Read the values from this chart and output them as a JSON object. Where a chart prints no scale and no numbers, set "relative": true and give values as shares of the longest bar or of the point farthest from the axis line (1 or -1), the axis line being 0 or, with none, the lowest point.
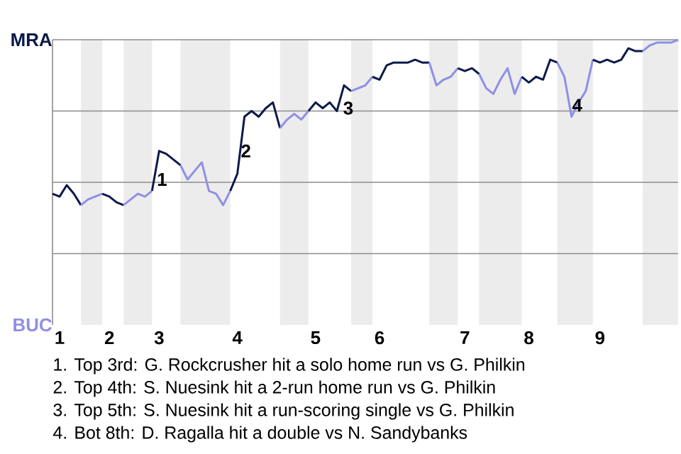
{
  "chart_data": {
    "type": "line",
    "relative": true,
    "grid": false,
    "categories": [
      null,
      "1",
      null,
      null,
      null,
      null,
      null,
      null,
      "2",
      null,
      null,
      null,
      null,
      null,
      null,
      "3",
      null,
      null,
      null,
      null,
      null,
      null,
      null,
      null,
      null,
      null,
      "4",
      null,
      null,
      null,
      null,
      null,
      null,
      null,
      null,
      null,
      null,
      "5",
      null,
      null,
      null,
      null,
      null,
      null,
      null,
      null,
      "6",
      null,
      null,
      null,
      null,
      null,
      null,
      null,
      null,
      null,
      null,
      null,
      "7",
      null,
      null,
      null,
      null,
      null,
      null,
      null,
      null,
      "8",
      null,
      null,
      null,
      null,
      null,
      null,
      null,
      null,
      null,
      "9",
      null,
      null,
      null,
      null,
      null,
      null,
      null,
      null,
      null,
      null,
      null
    ],
    "series": [
      {
        "color": "#0b1a4a",
        "values": [
          0.46,
          0.45,
          0.49,
          0.46,
          0.42,
          null,
          null,
          null,
          null,
          null,
          null,
          null,
          null,
          null,
          null,
          null,
          null,
          null,
          null,
          null,
          null,
          null,
          null,
          null,
          null,
          null,
          null,
          null,
          null,
          null,
          null,
          null,
          null,
          null,
          null,
          null,
          null,
          null,
          null,
          null,
          null,
          null,
          null,
          null,
          null,
          null,
          null,
          null,
          null,
          null,
          null,
          null,
          null,
          null,
          null,
          null,
          null,
          null,
          null,
          null,
          null,
          null,
          null,
          null,
          null,
          null,
          null,
          null,
          null,
          null,
          null,
          null,
          null,
          null,
          null,
          null,
          null,
          null,
          null,
          null,
          null,
          null,
          null,
          null,
          null,
          null,
          null,
          null,
          null
        ]
      },
      {
        "color": "#8f8fe6",
        "values": [
          null,
          null,
          null,
          null,
          0.42,
          0.44,
          0.45,
          0.46,
          null,
          null,
          null,
          null,
          null,
          null,
          null,
          null,
          null,
          null,
          null,
          null,
          null,
          null,
          null,
          null,
          null,
          null,
          null,
          null,
          null,
          null,
          null,
          null,
          null,
          null,
          null,
          null,
          null,
          null,
          null,
          null,
          null,
          null,
          null,
          null,
          null,
          null,
          null,
          null,
          null,
          null,
          null,
          null,
          null,
          null,
          null,
          null,
          null,
          null,
          null,
          null,
          null,
          null,
          null,
          null,
          null,
          null,
          null,
          null,
          null,
          null,
          null,
          null,
          null,
          null,
          null,
          null,
          null,
          null,
          null,
          null,
          null,
          null,
          null,
          null,
          null,
          null,
          null,
          null,
          null
        ]
      },
      {
        "color": "#0b1a4a",
        "values": [
          null,
          null,
          null,
          null,
          null,
          null,
          null,
          0.46,
          0.45,
          0.43,
          0.42,
          null,
          null,
          null,
          null,
          null,
          null,
          null,
          null,
          null,
          null,
          null,
          null,
          null,
          null,
          null,
          null,
          null,
          null,
          null,
          null,
          null,
          null,
          null,
          null,
          null,
          null,
          null,
          null,
          null,
          null,
          null,
          null,
          null,
          null,
          null,
          null,
          null,
          null,
          null,
          null,
          null,
          null,
          null,
          null,
          null,
          null,
          null,
          null,
          null,
          null,
          null,
          null,
          null,
          null,
          null,
          null,
          null,
          null,
          null,
          null,
          null,
          null,
          null,
          null,
          null,
          null,
          null,
          null,
          null,
          null,
          null,
          null,
          null,
          null,
          null,
          null,
          null,
          null
        ]
      },
      {
        "color": "#8f8fe6",
        "values": [
          null,
          null,
          null,
          null,
          null,
          null,
          null,
          null,
          null,
          null,
          0.42,
          0.44,
          0.46,
          0.45,
          0.47,
          null,
          null,
          null,
          null,
          null,
          null,
          null,
          null,
          null,
          null,
          null,
          null,
          null,
          null,
          null,
          null,
          null,
          null,
          null,
          null,
          null,
          null,
          null,
          null,
          null,
          null,
          null,
          null,
          null,
          null,
          null,
          null,
          null,
          null,
          null,
          null,
          null,
          null,
          null,
          null,
          null,
          null,
          null,
          null,
          null,
          null,
          null,
          null,
          null,
          null,
          null,
          null,
          null,
          null,
          null,
          null,
          null,
          null,
          null,
          null,
          null,
          null,
          null,
          null,
          null,
          null,
          null,
          null,
          null,
          null,
          null,
          null,
          null,
          null
        ]
      },
      {
        "color": "#0b1a4a",
        "values": [
          null,
          null,
          null,
          null,
          null,
          null,
          null,
          null,
          null,
          null,
          null,
          null,
          null,
          null,
          0.47,
          0.61,
          0.6,
          0.58,
          0.56,
          null,
          null,
          null,
          null,
          null,
          null,
          null,
          null,
          null,
          null,
          null,
          null,
          null,
          null,
          null,
          null,
          null,
          null,
          null,
          null,
          null,
          null,
          null,
          null,
          null,
          null,
          null,
          null,
          null,
          null,
          null,
          null,
          null,
          null,
          null,
          null,
          null,
          null,
          null,
          null,
          null,
          null,
          null,
          null,
          null,
          null,
          null,
          null,
          null,
          null,
          null,
          null,
          null,
          null,
          null,
          null,
          null,
          null,
          null,
          null,
          null,
          null,
          null,
          null,
          null,
          null,
          null,
          null,
          null,
          null
        ]
      },
      {
        "color": "#8f8fe6",
        "values": [
          null,
          null,
          null,
          null,
          null,
          null,
          null,
          null,
          null,
          null,
          null,
          null,
          null,
          null,
          null,
          null,
          null,
          null,
          0.56,
          0.51,
          0.54,
          0.57,
          0.47,
          0.46,
          0.42,
          0.47,
          null,
          null,
          null,
          null,
          null,
          null,
          null,
          null,
          null,
          null,
          null,
          null,
          null,
          null,
          null,
          null,
          null,
          null,
          null,
          null,
          null,
          null,
          null,
          null,
          null,
          null,
          null,
          null,
          null,
          null,
          null,
          null,
          null,
          null,
          null,
          null,
          null,
          null,
          null,
          null,
          null,
          null,
          null,
          null,
          null,
          null,
          null,
          null,
          null,
          null,
          null,
          null,
          null,
          null,
          null,
          null,
          null,
          null,
          null,
          null,
          null,
          null,
          null
        ]
      },
      {
        "color": "#0b1a4a",
        "values": [
          null,
          null,
          null,
          null,
          null,
          null,
          null,
          null,
          null,
          null,
          null,
          null,
          null,
          null,
          null,
          null,
          null,
          null,
          null,
          null,
          null,
          null,
          null,
          null,
          null,
          0.47,
          0.53,
          0.73,
          0.75,
          0.73,
          0.76,
          0.78,
          0.69,
          null,
          null,
          null,
          null,
          null,
          null,
          null,
          null,
          null,
          null,
          null,
          null,
          null,
          null,
          null,
          null,
          null,
          null,
          null,
          null,
          null,
          null,
          null,
          null,
          null,
          null,
          null,
          null,
          null,
          null,
          null,
          null,
          null,
          null,
          null,
          null,
          null,
          null,
          null,
          null,
          null,
          null,
          null,
          null,
          null,
          null,
          null,
          null,
          null,
          null,
          null,
          null,
          null,
          null,
          null,
          null
        ]
      },
      {
        "color": "#8f8fe6",
        "values": [
          null,
          null,
          null,
          null,
          null,
          null,
          null,
          null,
          null,
          null,
          null,
          null,
          null,
          null,
          null,
          null,
          null,
          null,
          null,
          null,
          null,
          null,
          null,
          null,
          null,
          null,
          null,
          null,
          null,
          null,
          null,
          null,
          0.69,
          0.72,
          0.74,
          0.72,
          0.75,
          null,
          null,
          null,
          null,
          null,
          null,
          null,
          null,
          null,
          null,
          null,
          null,
          null,
          null,
          null,
          null,
          null,
          null,
          null,
          null,
          null,
          null,
          null,
          null,
          null,
          null,
          null,
          null,
          null,
          null,
          null,
          null,
          null,
          null,
          null,
          null,
          null,
          null,
          null,
          null,
          null,
          null,
          null,
          null,
          null,
          null,
          null,
          null,
          null,
          null,
          null,
          null
        ]
      },
      {
        "color": "#0b1a4a",
        "values": [
          null,
          null,
          null,
          null,
          null,
          null,
          null,
          null,
          null,
          null,
          null,
          null,
          null,
          null,
          null,
          null,
          null,
          null,
          null,
          null,
          null,
          null,
          null,
          null,
          null,
          null,
          null,
          null,
          null,
          null,
          null,
          null,
          null,
          null,
          null,
          null,
          0.75,
          0.78,
          0.76,
          0.78,
          0.75,
          0.84,
          0.82,
          null,
          null,
          null,
          null,
          null,
          null,
          null,
          null,
          null,
          null,
          null,
          null,
          null,
          null,
          null,
          null,
          null,
          null,
          null,
          null,
          null,
          null,
          null,
          null,
          null,
          null,
          null,
          null,
          null,
          null,
          null,
          null,
          null,
          null,
          null,
          null,
          null,
          null,
          null,
          null,
          null,
          null,
          null,
          null,
          null,
          null
        ]
      },
      {
        "color": "#8f8fe6",
        "values": [
          null,
          null,
          null,
          null,
          null,
          null,
          null,
          null,
          null,
          null,
          null,
          null,
          null,
          null,
          null,
          null,
          null,
          null,
          null,
          null,
          null,
          null,
          null,
          null,
          null,
          null,
          null,
          null,
          null,
          null,
          null,
          null,
          null,
          null,
          null,
          null,
          null,
          null,
          null,
          null,
          null,
          null,
          0.82,
          0.83,
          0.84,
          0.87,
          null,
          null,
          null,
          null,
          null,
          null,
          null,
          null,
          null,
          null,
          null,
          null,
          null,
          null,
          null,
          null,
          null,
          null,
          null,
          null,
          null,
          null,
          null,
          null,
          null,
          null,
          null,
          null,
          null,
          null,
          null,
          null,
          null,
          null,
          null,
          null,
          null,
          null,
          null,
          null,
          null,
          null,
          null
        ]
      },
      {
        "color": "#0b1a4a",
        "values": [
          null,
          null,
          null,
          null,
          null,
          null,
          null,
          null,
          null,
          null,
          null,
          null,
          null,
          null,
          null,
          null,
          null,
          null,
          null,
          null,
          null,
          null,
          null,
          null,
          null,
          null,
          null,
          null,
          null,
          null,
          null,
          null,
          null,
          null,
          null,
          null,
          null,
          null,
          null,
          null,
          null,
          null,
          null,
          null,
          null,
          0.87,
          0.86,
          0.91,
          0.92,
          0.92,
          0.92,
          0.93,
          0.92,
          0.92,
          null,
          null,
          null,
          null,
          null,
          null,
          null,
          null,
          null,
          null,
          null,
          null,
          null,
          null,
          null,
          null,
          null,
          null,
          null,
          null,
          null,
          null,
          null,
          null,
          null,
          null,
          null,
          null,
          null,
          null,
          null,
          null,
          null,
          null,
          null
        ]
      },
      {
        "color": "#8f8fe6",
        "values": [
          null,
          null,
          null,
          null,
          null,
          null,
          null,
          null,
          null,
          null,
          null,
          null,
          null,
          null,
          null,
          null,
          null,
          null,
          null,
          null,
          null,
          null,
          null,
          null,
          null,
          null,
          null,
          null,
          null,
          null,
          null,
          null,
          null,
          null,
          null,
          null,
          null,
          null,
          null,
          null,
          null,
          null,
          null,
          null,
          null,
          null,
          null,
          null,
          null,
          null,
          null,
          null,
          null,
          0.92,
          0.84,
          0.86,
          0.87,
          0.9,
          null,
          null,
          null,
          null,
          null,
          null,
          null,
          null,
          null,
          null,
          null,
          null,
          null,
          null,
          null,
          null,
          null,
          null,
          null,
          null,
          null,
          null,
          null,
          null,
          null,
          null,
          null,
          null,
          null,
          null,
          null
        ]
      },
      {
        "color": "#0b1a4a",
        "values": [
          null,
          null,
          null,
          null,
          null,
          null,
          null,
          null,
          null,
          null,
          null,
          null,
          null,
          null,
          null,
          null,
          null,
          null,
          null,
          null,
          null,
          null,
          null,
          null,
          null,
          null,
          null,
          null,
          null,
          null,
          null,
          null,
          null,
          null,
          null,
          null,
          null,
          null,
          null,
          null,
          null,
          null,
          null,
          null,
          null,
          null,
          null,
          null,
          null,
          null,
          null,
          null,
          null,
          null,
          null,
          null,
          null,
          0.9,
          0.89,
          0.9,
          0.88,
          null,
          null,
          null,
          null,
          null,
          null,
          null,
          null,
          null,
          null,
          null,
          null,
          null,
          null,
          null,
          null,
          null,
          null,
          null,
          null,
          null,
          null,
          null,
          null,
          null,
          null,
          null,
          null
        ]
      },
      {
        "color": "#8f8fe6",
        "values": [
          null,
          null,
          null,
          null,
          null,
          null,
          null,
          null,
          null,
          null,
          null,
          null,
          null,
          null,
          null,
          null,
          null,
          null,
          null,
          null,
          null,
          null,
          null,
          null,
          null,
          null,
          null,
          null,
          null,
          null,
          null,
          null,
          null,
          null,
          null,
          null,
          null,
          null,
          null,
          null,
          null,
          null,
          null,
          null,
          null,
          null,
          null,
          null,
          null,
          null,
          null,
          null,
          null,
          null,
          null,
          null,
          null,
          null,
          null,
          null,
          0.88,
          0.83,
          0.81,
          0.86,
          0.9,
          0.81,
          0.87,
          null,
          null,
          null,
          null,
          null,
          null,
          null,
          null,
          null,
          null,
          null,
          null,
          null,
          null,
          null,
          null,
          null,
          null,
          null,
          null,
          null,
          null
        ]
      },
      {
        "color": "#0b1a4a",
        "values": [
          null,
          null,
          null,
          null,
          null,
          null,
          null,
          null,
          null,
          null,
          null,
          null,
          null,
          null,
          null,
          null,
          null,
          null,
          null,
          null,
          null,
          null,
          null,
          null,
          null,
          null,
          null,
          null,
          null,
          null,
          null,
          null,
          null,
          null,
          null,
          null,
          null,
          null,
          null,
          null,
          null,
          null,
          null,
          null,
          null,
          null,
          null,
          null,
          null,
          null,
          null,
          null,
          null,
          null,
          null,
          null,
          null,
          null,
          null,
          null,
          null,
          null,
          null,
          null,
          null,
          null,
          0.87,
          0.85,
          0.87,
          0.86,
          0.93,
          0.92,
          null,
          null,
          null,
          null,
          null,
          null,
          null,
          null,
          null,
          null,
          null,
          null,
          null,
          null,
          null,
          null,
          null
        ]
      },
      {
        "color": "#8f8fe6",
        "values": [
          null,
          null,
          null,
          null,
          null,
          null,
          null,
          null,
          null,
          null,
          null,
          null,
          null,
          null,
          null,
          null,
          null,
          null,
          null,
          null,
          null,
          null,
          null,
          null,
          null,
          null,
          null,
          null,
          null,
          null,
          null,
          null,
          null,
          null,
          null,
          null,
          null,
          null,
          null,
          null,
          null,
          null,
          null,
          null,
          null,
          null,
          null,
          null,
          null,
          null,
          null,
          null,
          null,
          null,
          null,
          null,
          null,
          null,
          null,
          null,
          null,
          null,
          null,
          null,
          null,
          null,
          null,
          null,
          null,
          null,
          null,
          0.92,
          0.87,
          0.73,
          0.78,
          0.82,
          0.93,
          null,
          null,
          null,
          null,
          null,
          null,
          null,
          null,
          null,
          null,
          null,
          null
        ]
      },
      {
        "color": "#0b1a4a",
        "values": [
          null,
          null,
          null,
          null,
          null,
          null,
          null,
          null,
          null,
          null,
          null,
          null,
          null,
          null,
          null,
          null,
          null,
          null,
          null,
          null,
          null,
          null,
          null,
          null,
          null,
          null,
          null,
          null,
          null,
          null,
          null,
          null,
          null,
          null,
          null,
          null,
          null,
          null,
          null,
          null,
          null,
          null,
          null,
          null,
          null,
          null,
          null,
          null,
          null,
          null,
          null,
          null,
          null,
          null,
          null,
          null,
          null,
          null,
          null,
          null,
          null,
          null,
          null,
          null,
          null,
          null,
          null,
          null,
          null,
          null,
          null,
          null,
          null,
          null,
          null,
          null,
          0.93,
          0.92,
          0.93,
          0.92,
          0.93,
          0.97,
          0.96,
          0.96,
          null,
          null,
          null,
          null,
          null
        ]
      },
      {
        "color": "#8f8fe6",
        "values": [
          null,
          null,
          null,
          null,
          null,
          null,
          null,
          null,
          null,
          null,
          null,
          null,
          null,
          null,
          null,
          null,
          null,
          null,
          null,
          null,
          null,
          null,
          null,
          null,
          null,
          null,
          null,
          null,
          null,
          null,
          null,
          null,
          null,
          null,
          null,
          null,
          null,
          null,
          null,
          null,
          null,
          null,
          null,
          null,
          null,
          null,
          null,
          null,
          null,
          null,
          null,
          null,
          null,
          null,
          null,
          null,
          null,
          null,
          null,
          null,
          null,
          null,
          null,
          null,
          null,
          null,
          null,
          null,
          null,
          null,
          null,
          null,
          null,
          null,
          null,
          null,
          null,
          null,
          null,
          null,
          null,
          null,
          null,
          0.96,
          0.98,
          0.99,
          0.99,
          0.99,
          1.0
        ]
      }
    ],
    "ref_lines": [
      {
        "axis": "y",
        "value": 0.25,
        "color": "#8c8c8c"
      },
      {
        "axis": "y",
        "value": 0.5,
        "color": "#8c8c8c"
      },
      {
        "axis": "y",
        "value": 0.75,
        "color": "#8c8c8c"
      },
      {
        "axis": "y",
        "value": 1,
        "color": "#8c8c8c"
      }
    ],
    "annotations": [
      "MRA",
      "BUC",
      "1",
      "2",
      "3",
      "4",
      "1. Top 3rd: G. Rockcrusher hit a solo home run vs G. Philkin",
      "2. Top 4th: S. Nuesink hit a 2-run home run vs G. Philkin",
      "3. Top 5th: S. Nuesink hit a run-scoring single vs G. Philkin",
      "4. Bot 8th: D. Ragalla hit a double vs N. Sandybanks"
    ]
  }
}
